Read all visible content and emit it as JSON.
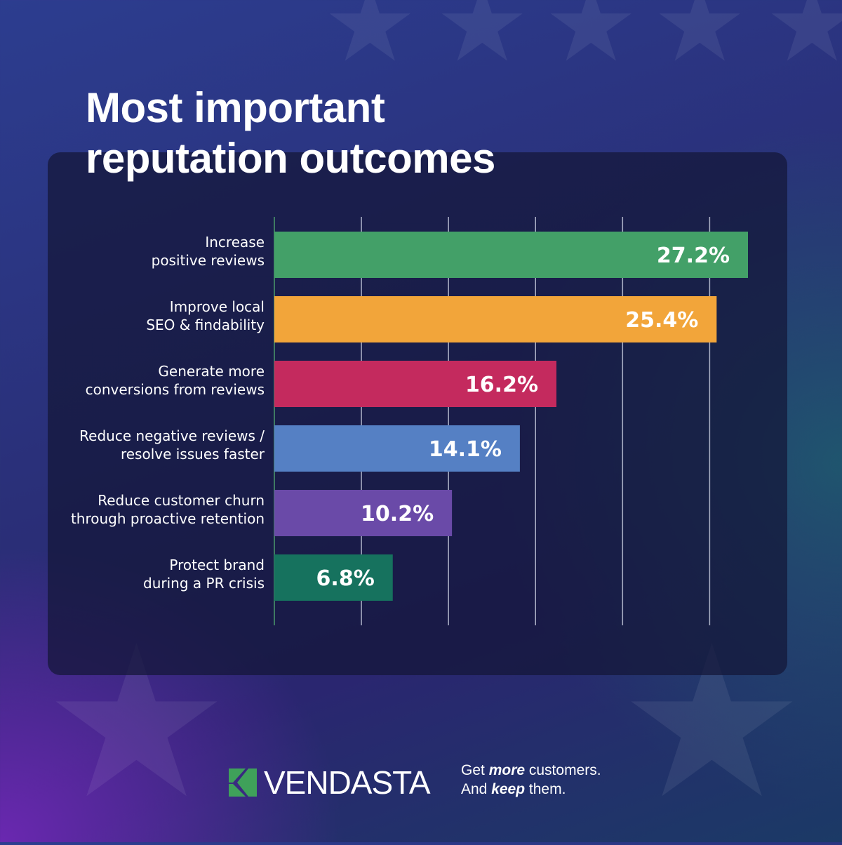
{
  "title_line1": "Most important",
  "title_line2": "reputation outcomes",
  "chart_data": {
    "type": "bar",
    "orientation": "horizontal",
    "title": "Most important reputation outcomes",
    "categories": [
      [
        "Increase",
        "positive reviews"
      ],
      [
        "Improve local",
        "SEO & findability"
      ],
      [
        "Generate more",
        "conversions from reviews"
      ],
      [
        "Reduce negative reviews /",
        "resolve issues faster"
      ],
      [
        "Reduce customer churn",
        "through proactive retention"
      ],
      [
        "Protect brand",
        "during a PR crisis"
      ]
    ],
    "values": [
      27.2,
      25.4,
      16.2,
      14.1,
      10.2,
      6.8
    ],
    "data_labels": [
      "27.2%",
      "25.4%",
      "16.2%",
      "14.1%",
      "10.2%",
      "6.8%"
    ],
    "colors": [
      "#43a068",
      "#f2a53a",
      "#c42a5e",
      "#5580c4",
      "#6a4aa8",
      "#16725e"
    ],
    "xlim": [
      0,
      27.2
    ],
    "gridlines": [
      0,
      5,
      10,
      15,
      20,
      25
    ],
    "grid": true,
    "tick_labels_shown": false
  },
  "footer": {
    "brand": "VENDASTA",
    "tagline_l1_a": "Get ",
    "tagline_l1_b": "more",
    "tagline_l1_c": " customers.",
    "tagline_l2_a": "And ",
    "tagline_l2_b": "keep",
    "tagline_l2_c": " them."
  }
}
